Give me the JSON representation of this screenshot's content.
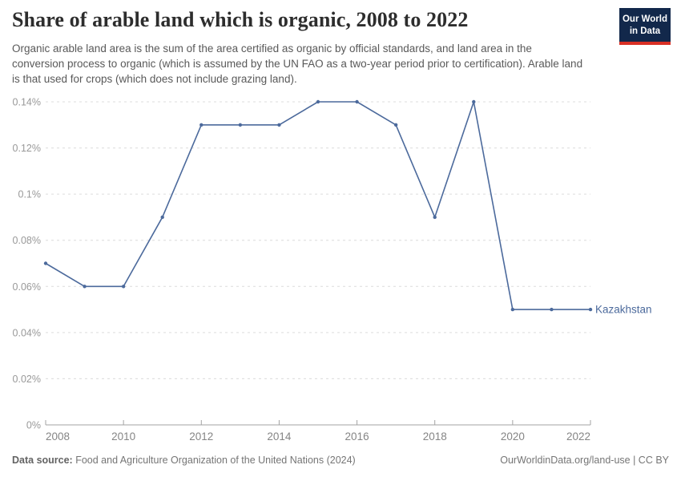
{
  "header": {
    "title": "Share of arable land which is organic, 2008 to 2022",
    "subtitle": "Organic arable land area is the sum of the area certified as organic by official standards, and land area in the conversion process to organic (which is assumed by the UN FAO as a two-year period prior to certification). Arable land is that used for crops (which does not include grazing land).",
    "logo": {
      "line1": "Our World",
      "line2": "in Data"
    }
  },
  "chart_data": {
    "type": "line",
    "title": "Share of arable land which is organic, 2008 to 2022",
    "x": [
      2008,
      2009,
      2010,
      2011,
      2012,
      2013,
      2014,
      2015,
      2016,
      2017,
      2018,
      2019,
      2020,
      2021,
      2022
    ],
    "series": [
      {
        "name": "Kazakhstan",
        "color": "#4C6A9C",
        "values": [
          0.07,
          0.06,
          0.06,
          0.09,
          0.13,
          0.13,
          0.13,
          0.14,
          0.14,
          0.13,
          0.09,
          0.14,
          0.05,
          0.05,
          0.05
        ]
      }
    ],
    "xlim": [
      2008,
      2022
    ],
    "ylim": [
      0,
      0.14
    ],
    "x_ticks": [
      2008,
      2010,
      2012,
      2014,
      2016,
      2018,
      2020,
      2022
    ],
    "y_ticks": [
      0,
      0.02,
      0.04,
      0.06,
      0.08,
      0.1,
      0.12,
      0.14
    ],
    "y_tick_labels": [
      "0%",
      "0.02%",
      "0.04%",
      "0.06%",
      "0.08%",
      "0.1%",
      "0.12%",
      "0.14%"
    ],
    "xlabel": "",
    "ylabel": "",
    "grid": "horizontal-dashed",
    "legend_position": "line-end-label"
  },
  "colors": {
    "line": "#4C6A9C",
    "grid": "#dcdcdc",
    "axis": "#a3a3a3",
    "y_tick_text": "#999999",
    "x_tick_text": "#858585",
    "logo_bg": "#12284B",
    "logo_accent": "#D93025"
  },
  "footer": {
    "source_label": "Data source:",
    "source_text": " Food and Agriculture Organization of the United Nations (2024)",
    "credit": "OurWorldinData.org/land-use | CC BY"
  }
}
